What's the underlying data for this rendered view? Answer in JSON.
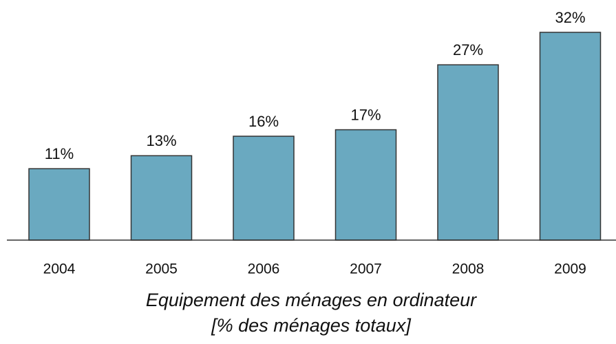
{
  "chart_data": {
    "type": "bar",
    "title": "Equipement des ménages en ordinateur",
    "subtitle": "[% des ménages totaux]",
    "categories": [
      "2004",
      "2005",
      "2006",
      "2007",
      "2008",
      "2009"
    ],
    "values": [
      11,
      13,
      16,
      17,
      27,
      32
    ],
    "value_labels": [
      "11%",
      "13%",
      "16%",
      "17%",
      "27%",
      "32%"
    ],
    "color": "#6aa9c0"
  }
}
